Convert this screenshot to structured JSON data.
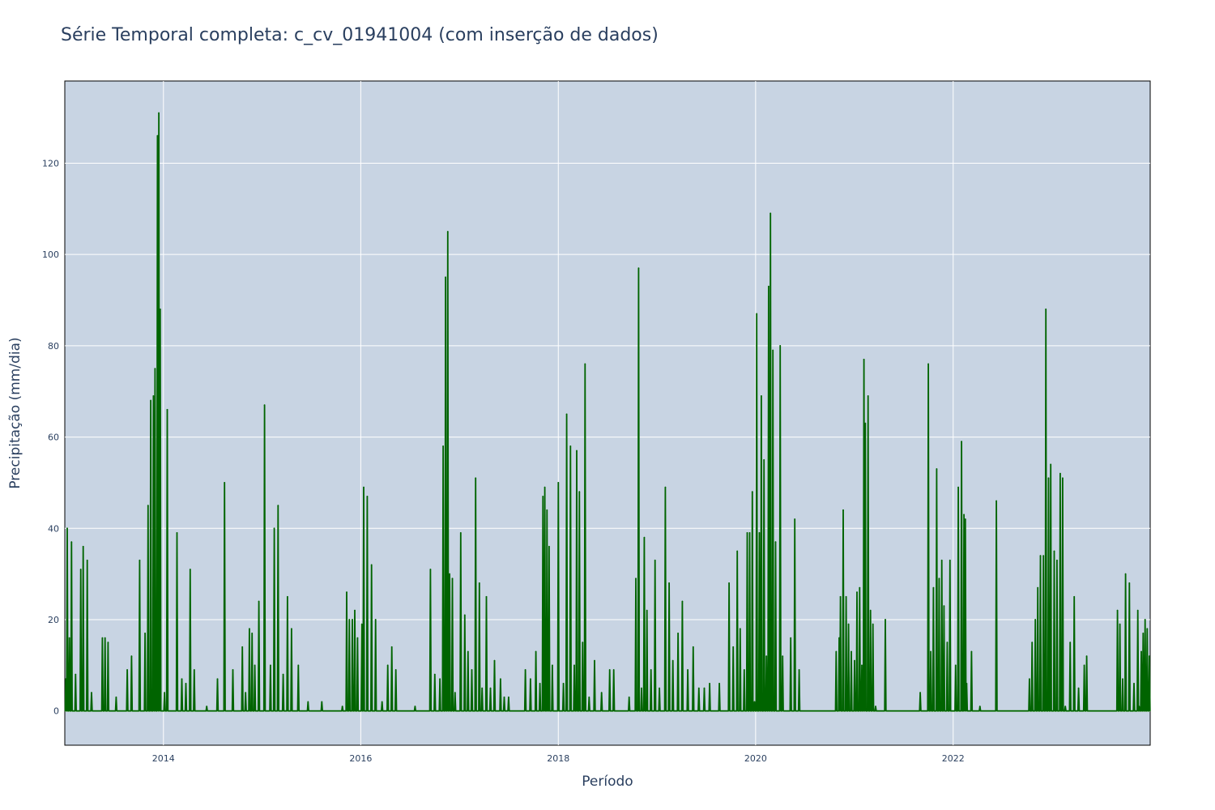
{
  "chart_data": {
    "type": "line",
    "title": "Série Temporal completa: c_cv_01941004 (com inserção de dados)",
    "xlabel": "Período",
    "ylabel": "Precipitação (mm/dia)",
    "xlim": [
      "2013-01-01",
      "2023-12-31"
    ],
    "ylim": [
      -7.5,
      138
    ],
    "x_ticks": [
      "2014",
      "2016",
      "2018",
      "2020",
      "2022"
    ],
    "y_ticks": [
      0,
      20,
      40,
      60,
      80,
      100,
      120
    ],
    "grid": true,
    "legend": "none",
    "colors": {
      "line": "#006400",
      "plot_background": "#c8d4e3",
      "grid": "#ffffff",
      "text": "#2a3f5f"
    },
    "series": [
      {
        "x": [
          "2013-01-05",
          "2013-01-10",
          "2013-01-18",
          "2013-01-26",
          "2013-02-10",
          "2013-03-01",
          "2013-03-10",
          "2013-03-25",
          "2013-04-10",
          "2013-05-20",
          "2013-05-30",
          "2013-06-10",
          "2013-07-10",
          "2013-08-20",
          "2013-09-05",
          "2013-10-05",
          "2013-10-25",
          "2013-11-05",
          "2013-11-15",
          "2013-11-25",
          "2013-12-01",
          "2013-12-10",
          "2013-12-15",
          "2013-12-20",
          "2014-01-05",
          "2014-01-15",
          "2014-02-20",
          "2014-03-10",
          "2014-03-25",
          "2014-04-10",
          "2014-04-25",
          "2014-06-10",
          "2014-07-20",
          "2014-08-15",
          "2014-09-15",
          "2014-10-20",
          "2014-11-01",
          "2014-11-15",
          "2014-11-25",
          "2014-12-05",
          "2014-12-20",
          "2015-01-10",
          "2015-02-01",
          "2015-02-15",
          "2015-03-01",
          "2015-03-20",
          "2015-04-05",
          "2015-04-20",
          "2015-05-15",
          "2015-06-20",
          "2015-08-10",
          "2015-10-25",
          "2015-11-10",
          "2015-11-20",
          "2015-12-01",
          "2015-12-10",
          "2015-12-20",
          "2016-01-05",
          "2016-01-12",
          "2016-01-25",
          "2016-02-10",
          "2016-02-25",
          "2016-03-20",
          "2016-04-10",
          "2016-04-25",
          "2016-05-10",
          "2016-07-20",
          "2016-09-15",
          "2016-10-01",
          "2016-10-20",
          "2016-11-01",
          "2016-11-10",
          "2016-11-18",
          "2016-11-25",
          "2016-12-05",
          "2016-12-15",
          "2017-01-05",
          "2017-01-20",
          "2017-02-01",
          "2017-02-15",
          "2017-03-01",
          "2017-03-15",
          "2017-03-25",
          "2017-04-10",
          "2017-04-25",
          "2017-05-10",
          "2017-06-01",
          "2017-06-15",
          "2017-07-01",
          "2017-09-01",
          "2017-09-20",
          "2017-10-10",
          "2017-10-25",
          "2017-11-05",
          "2017-11-12",
          "2017-11-20",
          "2017-11-28",
          "2017-12-10",
          "2018-01-01",
          "2018-01-20",
          "2018-02-01",
          "2018-02-15",
          "2018-03-01",
          "2018-03-10",
          "2018-03-20",
          "2018-04-01",
          "2018-04-10",
          "2018-04-25",
          "2018-05-15",
          "2018-06-10",
          "2018-07-10",
          "2018-07-25",
          "2018-09-20",
          "2018-10-15",
          "2018-10-25",
          "2018-11-05",
          "2018-11-15",
          "2018-11-25",
          "2018-12-10",
          "2018-12-25",
          "2019-01-10",
          "2019-02-01",
          "2019-02-15",
          "2019-03-01",
          "2019-03-20",
          "2019-04-05",
          "2019-04-25",
          "2019-05-15",
          "2019-06-05",
          "2019-06-25",
          "2019-07-15",
          "2019-08-20",
          "2019-09-25",
          "2019-10-10",
          "2019-10-25",
          "2019-11-05",
          "2019-11-20",
          "2019-12-01",
          "2019-12-10",
          "2019-12-20",
          "2019-12-28",
          "2020-01-05",
          "2020-01-15",
          "2020-01-22",
          "2020-02-01",
          "2020-02-10",
          "2020-02-18",
          "2020-02-25",
          "2020-03-05",
          "2020-03-15",
          "2020-04-01",
          "2020-04-10",
          "2020-05-10",
          "2020-05-25",
          "2020-06-10",
          "2020-10-25",
          "2020-11-05",
          "2020-11-10",
          "2020-11-20",
          "2020-12-01",
          "2020-12-10",
          "2020-12-20",
          "2021-01-01",
          "2021-01-10",
          "2021-01-20",
          "2021-01-28",
          "2021-02-05",
          "2021-02-10",
          "2021-02-20",
          "2021-03-01",
          "2021-03-10",
          "2021-03-20",
          "2021-04-25",
          "2021-09-01",
          "2021-10-01",
          "2021-10-10",
          "2021-10-20",
          "2021-11-01",
          "2021-11-10",
          "2021-11-20",
          "2021-11-28",
          "2021-12-10",
          "2021-12-20",
          "2022-01-10",
          "2022-01-20",
          "2022-02-01",
          "2022-02-10",
          "2022-02-15",
          "2022-02-20",
          "2022-03-10",
          "2022-04-10",
          "2022-06-10",
          "2022-10-10",
          "2022-10-20",
          "2022-11-01",
          "2022-11-10",
          "2022-11-20",
          "2022-12-01",
          "2022-12-10",
          "2022-12-20",
          "2022-12-28",
          "2023-01-10",
          "2023-01-20",
          "2023-02-01",
          "2023-02-10",
          "2023-02-20",
          "2023-03-10",
          "2023-03-25",
          "2023-04-10",
          "2023-05-01",
          "2023-05-10",
          "2023-09-01",
          "2023-09-10",
          "2023-09-20",
          "2023-10-01",
          "2023-10-15",
          "2023-11-01",
          "2023-11-15",
          "2023-11-20",
          "2023-11-28",
          "2023-12-05",
          "2023-12-12",
          "2023-12-20",
          "2023-12-28"
        ],
        "y": [
          7,
          40,
          16,
          37,
          8,
          31,
          36,
          33,
          4,
          16,
          16,
          15,
          3,
          9,
          12,
          33,
          17,
          45,
          68,
          69,
          75,
          126,
          131,
          88,
          4,
          66,
          39,
          7,
          6,
          31,
          9,
          1,
          7,
          50,
          9,
          14,
          4,
          18,
          17,
          10,
          24,
          67,
          10,
          40,
          45,
          8,
          25,
          18,
          10,
          2,
          2,
          1,
          26,
          20,
          20,
          22,
          16,
          19,
          49,
          47,
          32,
          20,
          2,
          10,
          14,
          9,
          1,
          31,
          8,
          7,
          58,
          95,
          105,
          30,
          29,
          4,
          39,
          21,
          13,
          9,
          51,
          28,
          5,
          25,
          5,
          11,
          7,
          3,
          3,
          9,
          7,
          13,
          6,
          47,
          49,
          44,
          36,
          10,
          50,
          6,
          65,
          58,
          10,
          57,
          48,
          15,
          76,
          3,
          11,
          4,
          9,
          9,
          3,
          29,
          97,
          5,
          38,
          22,
          9,
          33,
          5,
          49,
          28,
          11,
          17,
          24,
          9,
          14,
          5,
          5,
          6,
          6,
          28,
          14,
          35,
          18,
          9,
          39,
          39,
          48,
          2,
          87,
          39,
          69,
          55,
          12,
          93,
          109,
          79,
          37,
          80,
          12,
          16,
          42,
          9,
          13,
          16,
          25,
          44,
          25,
          19,
          13,
          11,
          26,
          27,
          10,
          77,
          63,
          69,
          22,
          19,
          1,
          20,
          4,
          76,
          13,
          27,
          53,
          29,
          33,
          23,
          15,
          33,
          10,
          49,
          59,
          43,
          42,
          6,
          13,
          1,
          46,
          7,
          15,
          20,
          27,
          34,
          34,
          88,
          51,
          54,
          35,
          33,
          52,
          51,
          1,
          15,
          25,
          5,
          10,
          12,
          22,
          19,
          7,
          30,
          28,
          6,
          22,
          1,
          13,
          17,
          20,
          18,
          12
        ]
      }
    ]
  }
}
